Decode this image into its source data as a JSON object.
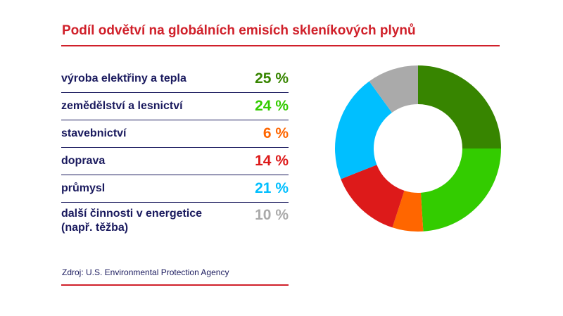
{
  "title": "Podíl odvětví na globálních emisích skleníkových plynů",
  "source": "Zdroj: U.S. Environmental Protection Agency",
  "chart_data": {
    "type": "pie",
    "donut": true,
    "categories": [
      "výroba elektřiny a tepla",
      "zemědělství a lesnictví",
      "stavebnictví",
      "doprava",
      "průmysl",
      "další činnosti v energetice (např. těžba)"
    ],
    "values": [
      25,
      24,
      6,
      14,
      21,
      10
    ],
    "labels": [
      "25 %",
      "24 %",
      "6 %",
      "14 %",
      "21 %",
      "10 %"
    ],
    "colors": [
      "#378500",
      "#33cc00",
      "#ff6600",
      "#dd1a1a",
      "#00bfff",
      "#aaaaaa"
    ]
  }
}
